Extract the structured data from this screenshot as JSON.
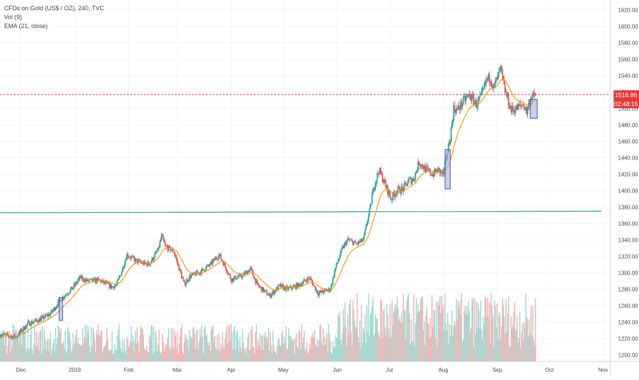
{
  "legend": {
    "symbol_line": "CFDs on Gold (US$ / OZ), 240, TVC",
    "volume_line": "Vol (9)",
    "ema_line": "EMA (21, close)"
  },
  "price_badge": {
    "price": "1516.86",
    "countdown": "02:48:15"
  },
  "colors": {
    "up": "#26a69a",
    "down": "#ef5350",
    "ema": "#ff9800",
    "trendline": "#26a69a",
    "price_line": "#e53935",
    "box_fill": "#9fa8da",
    "box_stroke": "#3f51b5",
    "grid": "#f0f3fa",
    "axis_text": "#434651",
    "vol_up": "#a6d9d4",
    "vol_down": "#f5b5b3"
  },
  "chart_data": {
    "type": "candlestick",
    "title": "CFDs on Gold (US$ / OZ), 240, TVC",
    "interval": "240",
    "ylim": [
      1192,
      1632
    ],
    "y_ticks": [
      1200,
      1220,
      1240,
      1260,
      1280,
      1300,
      1320,
      1340,
      1360,
      1380,
      1400,
      1420,
      1440,
      1460,
      1480,
      1500,
      1520,
      1540,
      1560,
      1580,
      1600,
      1620
    ],
    "x_range": [
      "2018-11-19",
      "2019-11-05"
    ],
    "x_ticks": [
      {
        "date": "2018-12-01",
        "label": "Dec"
      },
      {
        "date": "2019-01-01",
        "label": "2019"
      },
      {
        "date": "2019-02-01",
        "label": "Feb"
      },
      {
        "date": "2019-03-01",
        "label": "Mar"
      },
      {
        "date": "2019-04-01",
        "label": "Apr"
      },
      {
        "date": "2019-05-01",
        "label": "May"
      },
      {
        "date": "2019-06-01",
        "label": "Jun"
      },
      {
        "date": "2019-07-01",
        "label": "Jul"
      },
      {
        "date": "2019-08-01",
        "label": "Aug"
      },
      {
        "date": "2019-09-01",
        "label": "Sep"
      },
      {
        "date": "2019-10-01",
        "label": "Oct"
      },
      {
        "date": "2019-11-01",
        "label": "Nov"
      }
    ],
    "price_path": [
      [
        "2018-11-19",
        1225
      ],
      [
        "2018-11-28",
        1222
      ],
      [
        "2018-12-05",
        1238
      ],
      [
        "2018-12-12",
        1243
      ],
      [
        "2018-12-18",
        1250
      ],
      [
        "2018-12-24",
        1268
      ],
      [
        "2018-12-31",
        1282
      ],
      [
        "2019-01-04",
        1294
      ],
      [
        "2019-01-08",
        1290
      ],
      [
        "2019-01-15",
        1291
      ],
      [
        "2019-01-22",
        1283
      ],
      [
        "2019-01-25",
        1285
      ],
      [
        "2019-01-28",
        1302
      ],
      [
        "2019-01-31",
        1322
      ],
      [
        "2019-02-05",
        1315
      ],
      [
        "2019-02-10",
        1311
      ],
      [
        "2019-02-13",
        1311
      ],
      [
        "2019-02-18",
        1328
      ],
      [
        "2019-02-20",
        1345
      ],
      [
        "2019-02-22",
        1332
      ],
      [
        "2019-02-27",
        1326
      ],
      [
        "2019-03-01",
        1312
      ],
      [
        "2019-03-05",
        1286
      ],
      [
        "2019-03-08",
        1295
      ],
      [
        "2019-03-15",
        1302
      ],
      [
        "2019-03-20",
        1310
      ],
      [
        "2019-03-25",
        1322
      ],
      [
        "2019-03-28",
        1310
      ],
      [
        "2019-04-01",
        1292
      ],
      [
        "2019-04-08",
        1297
      ],
      [
        "2019-04-12",
        1305
      ],
      [
        "2019-04-16",
        1285
      ],
      [
        "2019-04-23",
        1272
      ],
      [
        "2019-04-29",
        1284
      ],
      [
        "2019-05-03",
        1280
      ],
      [
        "2019-05-10",
        1285
      ],
      [
        "2019-05-16",
        1294
      ],
      [
        "2019-05-21",
        1275
      ],
      [
        "2019-05-28",
        1280
      ],
      [
        "2019-05-31",
        1306
      ],
      [
        "2019-06-04",
        1330
      ],
      [
        "2019-06-07",
        1340
      ],
      [
        "2019-06-12",
        1335
      ],
      [
        "2019-06-16",
        1340
      ],
      [
        "2019-06-20",
        1380
      ],
      [
        "2019-06-22",
        1405
      ],
      [
        "2019-06-25",
        1425
      ],
      [
        "2019-06-28",
        1410
      ],
      [
        "2019-07-02",
        1390
      ],
      [
        "2019-07-05",
        1400
      ],
      [
        "2019-07-09",
        1402
      ],
      [
        "2019-07-12",
        1412
      ],
      [
        "2019-07-15",
        1414
      ],
      [
        "2019-07-18",
        1435
      ],
      [
        "2019-07-22",
        1425
      ],
      [
        "2019-07-26",
        1420
      ],
      [
        "2019-07-29",
        1425
      ],
      [
        "2019-08-01",
        1420
      ],
      [
        "2019-08-05",
        1465
      ],
      [
        "2019-08-07",
        1500
      ],
      [
        "2019-08-09",
        1498
      ],
      [
        "2019-08-13",
        1510
      ],
      [
        "2019-08-16",
        1516
      ],
      [
        "2019-08-20",
        1505
      ],
      [
        "2019-08-23",
        1515
      ],
      [
        "2019-08-26",
        1535
      ],
      [
        "2019-08-28",
        1538
      ],
      [
        "2019-08-30",
        1525
      ],
      [
        "2019-09-03",
        1548
      ],
      [
        "2019-09-05",
        1525
      ],
      [
        "2019-09-09",
        1498
      ],
      [
        "2019-09-12",
        1500
      ],
      [
        "2019-09-16",
        1505
      ],
      [
        "2019-09-18",
        1496
      ],
      [
        "2019-09-20",
        1512
      ],
      [
        "2019-09-23",
        1516
      ]
    ],
    "ema_length": 21,
    "price_line_value": 1516.86,
    "trendline": {
      "from": [
        "2018-11-19",
        1373
      ],
      "to": [
        "2019-10-31",
        1375
      ]
    },
    "range_boxes": [
      {
        "from": "2018-12-23",
        "to": "2018-12-25",
        "low": 1242,
        "high": 1270
      },
      {
        "from": "2019-08-02",
        "to": "2019-08-05",
        "low": 1402,
        "high": 1450
      },
      {
        "from": "2019-09-20",
        "to": "2019-09-24",
        "low": 1488,
        "high": 1511
      }
    ],
    "volume_series": "Vol (9)",
    "ema_series": "EMA (21, close)"
  }
}
